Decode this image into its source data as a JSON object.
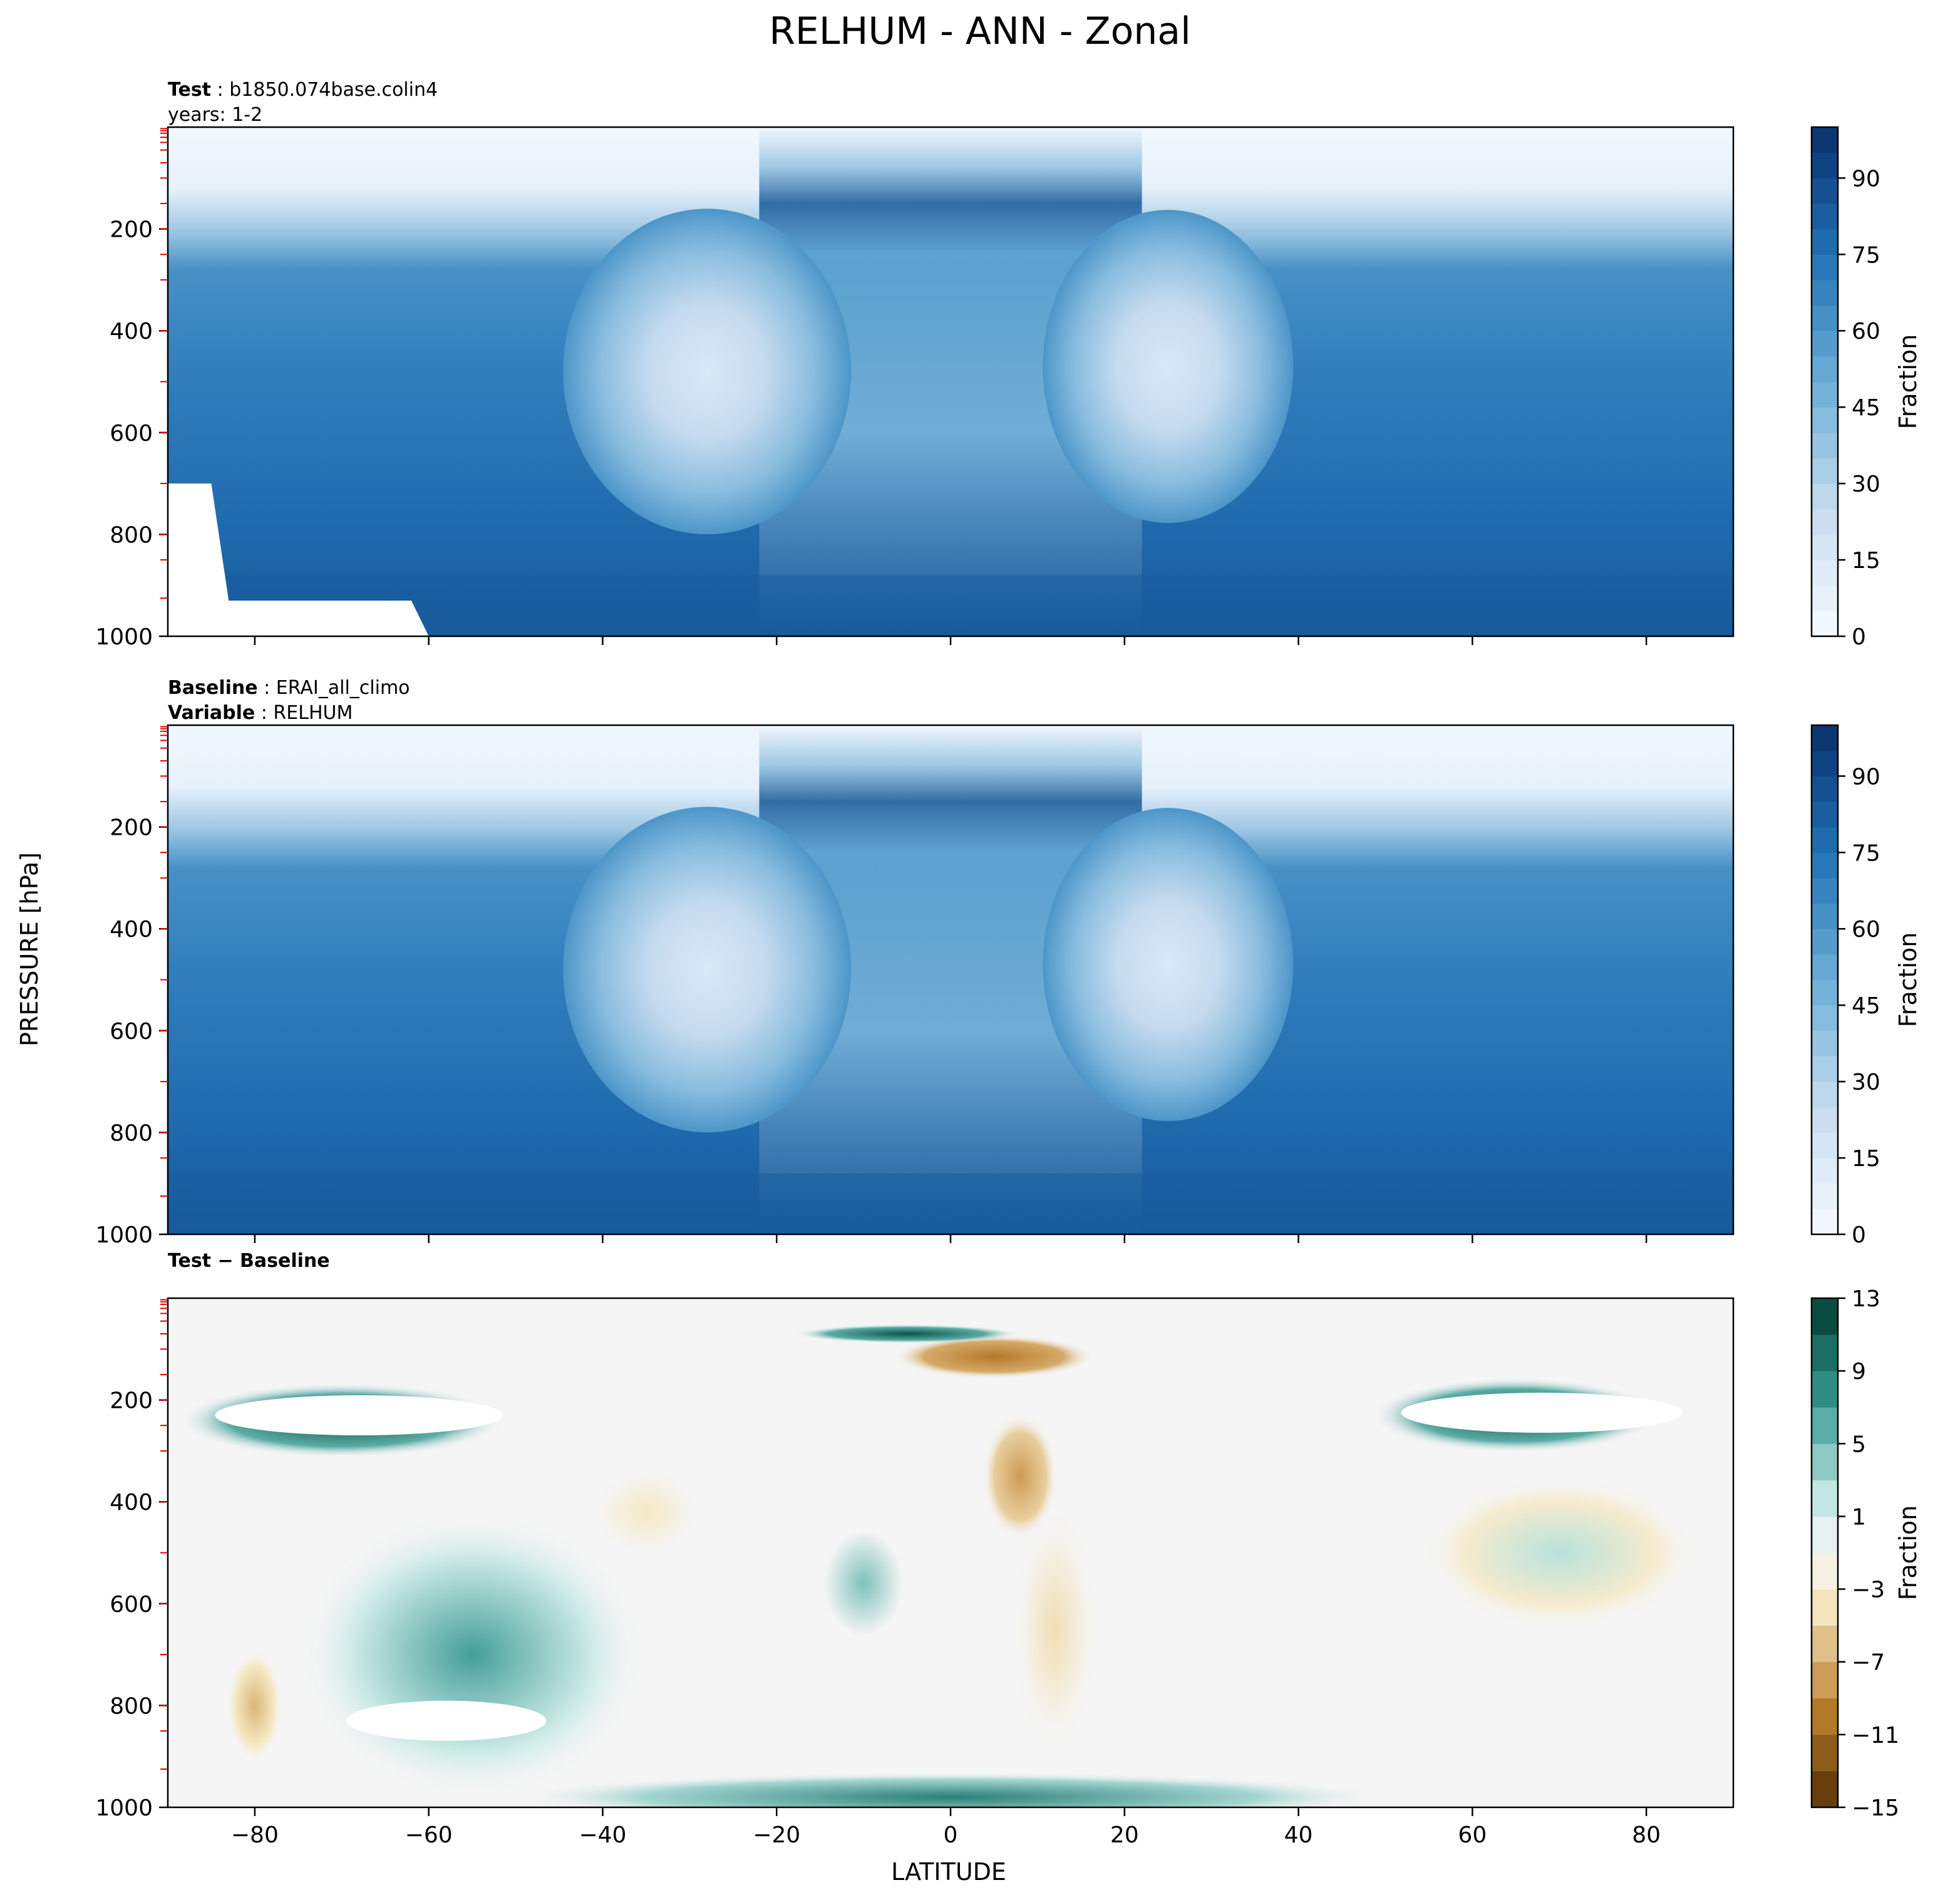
{
  "figure": {
    "title": "RELHUM - ANN - Zonal",
    "xlabel": "LATITUDE",
    "ylabel": "PRESSURE [hPa]"
  },
  "chart_data": [
    {
      "type": "heatmap",
      "panel": "test",
      "label_bold": "Test",
      "label_text": "b1850.074base.colin4",
      "label_line2": "years: 1-2",
      "x_ticks": [
        -80,
        -60,
        -40,
        -20,
        0,
        20,
        40,
        60,
        80
      ],
      "y_ticks": [
        200,
        400,
        600,
        800,
        1000
      ],
      "xlim": [
        -90,
        90
      ],
      "ylim": [
        1000,
        0
      ],
      "colorbar": {
        "label": "Fraction",
        "ticks": [
          0,
          15,
          30,
          45,
          60,
          75,
          90
        ],
        "range": [
          0,
          100
        ],
        "levels": 20,
        "colormap": "Blues"
      },
      "missing_region_color": "#ffffff"
    },
    {
      "type": "heatmap",
      "panel": "baseline",
      "label_bold": "Baseline",
      "label_text": "ERAI_all_climo",
      "label_bold2": "Variable",
      "label_text2": "RELHUM",
      "x_ticks": [
        -80,
        -60,
        -40,
        -20,
        0,
        20,
        40,
        60,
        80
      ],
      "y_ticks": [
        200,
        400,
        600,
        800,
        1000
      ],
      "xlim": [
        -90,
        90
      ],
      "ylim": [
        1000,
        0
      ],
      "colorbar": {
        "label": "Fraction",
        "ticks": [
          0,
          15,
          30,
          45,
          60,
          75,
          90
        ],
        "range": [
          0,
          100
        ],
        "levels": 20,
        "colormap": "Blues"
      }
    },
    {
      "type": "heatmap",
      "panel": "difference",
      "label_bold": "Test − Baseline",
      "x_ticks": [
        -80,
        -60,
        -40,
        -20,
        0,
        20,
        40,
        60,
        80
      ],
      "x_tick_labels": [
        "−80",
        "−60",
        "−40",
        "−20",
        "0",
        "20",
        "40",
        "60",
        "80"
      ],
      "y_ticks": [
        200,
        400,
        600,
        800,
        1000
      ],
      "xlim": [
        -90,
        90
      ],
      "ylim": [
        1000,
        0
      ],
      "colorbar": {
        "label": "Fraction",
        "ticks": [
          13,
          9,
          5,
          1,
          -3,
          -7,
          -11,
          -15
        ],
        "tick_labels": [
          "13",
          "9",
          "5",
          "1",
          "−3",
          "−7",
          "−11",
          "−15"
        ],
        "range": [
          -15,
          13
        ],
        "colormap": "BrBG"
      }
    }
  ]
}
